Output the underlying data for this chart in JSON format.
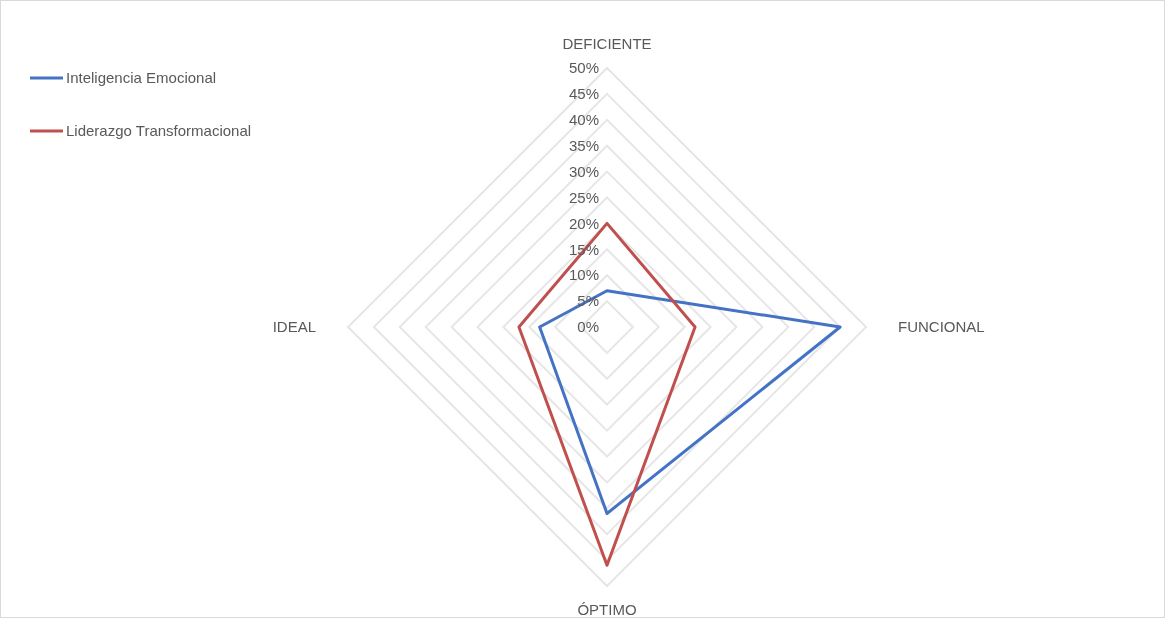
{
  "chart_data": {
    "type": "radar",
    "categories": [
      "DEFICIENTE",
      "FUNCIONAL",
      "ÓPTIMO",
      "IDEAL"
    ],
    "series": [
      {
        "name": "Inteligencia Emocional",
        "color": "#4472c4",
        "values": [
          7,
          45,
          36,
          13
        ]
      },
      {
        "name": "Liderazgo Transformacional",
        "color": "#c0504d",
        "values": [
          20,
          17,
          46,
          17
        ]
      }
    ],
    "ylim": [
      0,
      50
    ],
    "yticks": [
      {
        "value": 0,
        "label": "0%"
      },
      {
        "value": 5,
        "label": "5%"
      },
      {
        "value": 10,
        "label": "10%"
      },
      {
        "value": 15,
        "label": "15%"
      },
      {
        "value": 20,
        "label": "20%"
      },
      {
        "value": 25,
        "label": "25%"
      },
      {
        "value": 30,
        "label": "30%"
      },
      {
        "value": 35,
        "label": "35%"
      },
      {
        "value": 40,
        "label": "40%"
      },
      {
        "value": 45,
        "label": "45%"
      },
      {
        "value": 50,
        "label": "50%"
      }
    ],
    "grid": true,
    "legend": "top left"
  }
}
